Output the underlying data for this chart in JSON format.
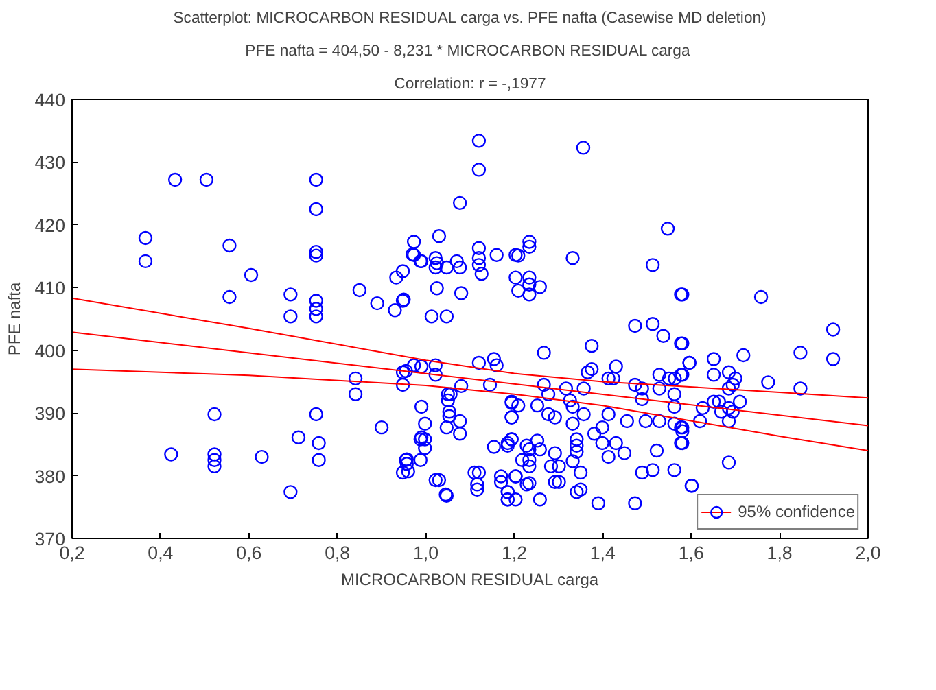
{
  "chart_data": {
    "type": "scatter",
    "title": "Scatterplot: MICROCARBON RESIDUAL carga vs. PFE nafta (Casewise MD deletion)",
    "subtitle": "PFE nafta = 404,50 - 8,231  * MICROCARBON RESIDUAL carga",
    "annotations": [
      "Correlation: r = -,1977"
    ],
    "xlabel": "MICROCARBON RESIDUAL carga",
    "ylabel": "PFE nafta",
    "xlim": [
      0.2,
      2.0
    ],
    "ylim": [
      370,
      440
    ],
    "xticks": [
      {
        "value": 0.2,
        "label": "0,2"
      },
      {
        "value": 0.4,
        "label": "0,4"
      },
      {
        "value": 0.6,
        "label": "0,6"
      },
      {
        "value": 0.8,
        "label": "0,8"
      },
      {
        "value": 1.0,
        "label": "1,0"
      },
      {
        "value": 1.2,
        "label": "1,2"
      },
      {
        "value": 1.4,
        "label": "1,4"
      },
      {
        "value": 1.6,
        "label": "1,6"
      },
      {
        "value": 1.8,
        "label": "1,8"
      },
      {
        "value": 2.0,
        "label": "2,0"
      }
    ],
    "yticks": [
      370,
      380,
      390,
      400,
      410,
      420,
      430,
      440
    ],
    "grid": false,
    "legend": "bottom right",
    "line_style": "solid",
    "series": [
      {
        "marker": "circle",
        "color": "#0000ff",
        "x": [
          0.433,
          0.504,
          0.752,
          0.752,
          0.366,
          0.366,
          0.556,
          0.605,
          0.752,
          0.752,
          0.556,
          0.694,
          0.694,
          0.752,
          0.752,
          0.752,
          0.522,
          0.752,
          0.712,
          0.758,
          0.424,
          0.522,
          0.522,
          0.522,
          0.629,
          0.758,
          0.694,
          0.85,
          0.89,
          0.93,
          0.948,
          0.97,
          0.99,
          0.95,
          0.955,
          0.99,
          0.99,
          0.99,
          0.955,
          0.96,
          1.025,
          1.025,
          1.05,
          1.05,
          1.03,
          1.045,
          1.07,
          1.08,
          1.08,
          1.12,
          1.12,
          1.077,
          1.03,
          0.973,
          0.973,
          0.988,
          1.022,
          1.022,
          1.047,
          1.077,
          1.12,
          1.12,
          1.12,
          1.126,
          1.16,
          1.203,
          0.933,
          0.948,
          1.013,
          1.047,
          0.841,
          0.841,
          0.948,
          0.948,
          0.973,
          1.022,
          1.022,
          1.12,
          1.154,
          1.16,
          1.145,
          1.056,
          0.9,
          0.998,
          1.053,
          1.053,
          1.047,
          1.077,
          1.077,
          0.988,
          0.998,
          0.998,
          0.988,
          0.957,
          0.957,
          0.948,
          1.022,
          1.047,
          1.154,
          1.185,
          1.194,
          1.11,
          1.12,
          1.116,
          1.116,
          1.17,
          1.17,
          1.185,
          1.185,
          1.194,
          1.194,
          1.203,
          1.356,
          1.234,
          1.209,
          1.234,
          1.332,
          1.547,
          1.513,
          1.203,
          1.234,
          1.234,
          1.258,
          1.209,
          1.234,
          1.577,
          1.473,
          1.513,
          1.537,
          1.577,
          1.375,
          1.267,
          1.596,
          1.366,
          1.375,
          1.43,
          1.413,
          1.424,
          1.528,
          1.55,
          1.563,
          1.577,
          1.267,
          1.277,
          1.317,
          1.357,
          1.326,
          1.473,
          1.489,
          1.489,
          1.528,
          1.562,
          1.562,
          1.194,
          1.209,
          1.252,
          1.332,
          1.277,
          1.292,
          1.357,
          1.413,
          1.194,
          1.332,
          1.455,
          1.497,
          1.528,
          1.562,
          1.577,
          1.399,
          1.381,
          1.185,
          1.194,
          1.228,
          1.234,
          1.252,
          1.258,
          1.292,
          1.341,
          1.341,
          1.341,
          1.399,
          1.43,
          1.413,
          1.449,
          1.522,
          1.577,
          1.218,
          1.234,
          1.234,
          1.283,
          1.301,
          1.332,
          1.35,
          1.203,
          1.228,
          1.234,
          1.292,
          1.301,
          1.341,
          1.35,
          1.258,
          1.185,
          1.185,
          1.203,
          1.39,
          1.473,
          1.489,
          1.513,
          1.562,
          1.601,
          1.58,
          1.758,
          1.921,
          1.58,
          1.718,
          1.847,
          1.921,
          1.651,
          1.596,
          1.58,
          1.651,
          1.685,
          1.7,
          1.685,
          1.694,
          1.774,
          1.847,
          1.651,
          1.663,
          1.71,
          1.626,
          1.685,
          1.668,
          1.694,
          1.62,
          1.685,
          1.58,
          1.58,
          1.58,
          1.685,
          1.601
        ],
        "values": [
          427.2,
          427.2,
          427.2,
          422.5,
          417.9,
          414.2,
          416.7,
          412.0,
          415.7,
          415.1,
          408.5,
          408.9,
          405.4,
          407.9,
          406.6,
          405.4,
          389.8,
          389.8,
          386.1,
          385.2,
          383.4,
          383.4,
          382.5,
          381.5,
          383.0,
          382.5,
          377.4,
          409.6,
          407.5,
          406.4,
          412.6,
          415.3,
          414.2,
          408.1,
          396.7,
          397.4,
          391.0,
          386.1,
          382.5,
          380.7,
          413.9,
          409.9,
          393.0,
          392.0,
          379.3,
          377.0,
          414.2,
          409.1,
          394.3,
          433.4,
          428.8,
          423.5,
          418.2,
          417.3,
          415.2,
          414.2,
          414.7,
          413.2,
          413.2,
          413.2,
          416.3,
          414.7,
          413.6,
          412.2,
          415.2,
          415.2,
          411.6,
          407.9,
          405.4,
          405.4,
          395.5,
          393.0,
          396.5,
          394.5,
          397.6,
          397.6,
          396.1,
          398.0,
          398.6,
          397.6,
          394.5,
          393.0,
          387.7,
          388.3,
          390.2,
          389.5,
          387.7,
          388.7,
          386.7,
          385.8,
          385.8,
          384.4,
          382.5,
          382.6,
          381.9,
          380.5,
          379.3,
          376.8,
          384.6,
          384.8,
          385.8,
          380.5,
          380.5,
          378.6,
          377.8,
          379.9,
          379.0,
          377.4,
          376.2,
          391.6,
          389.3,
          379.9,
          432.3,
          417.3,
          415.1,
          416.5,
          414.7,
          419.4,
          413.6,
          411.6,
          411.6,
          410.5,
          410.1,
          409.5,
          408.9,
          408.9,
          403.9,
          404.2,
          402.3,
          401.1,
          400.7,
          399.6,
          398.0,
          396.5,
          397.0,
          397.4,
          395.5,
          395.5,
          396.1,
          395.5,
          395.5,
          396.1,
          394.5,
          393.0,
          393.9,
          393.9,
          392.0,
          394.5,
          393.9,
          392.2,
          393.9,
          393.0,
          391.0,
          391.8,
          391.2,
          391.2,
          391.0,
          389.8,
          389.3,
          389.8,
          389.8,
          389.3,
          388.3,
          388.7,
          388.7,
          388.7,
          388.3,
          387.7,
          387.7,
          386.7,
          385.2,
          385.8,
          384.8,
          384.2,
          385.6,
          384.2,
          383.6,
          385.8,
          384.8,
          383.8,
          385.2,
          385.2,
          383.0,
          383.6,
          384.0,
          385.2,
          382.5,
          382.5,
          381.5,
          381.5,
          381.5,
          382.3,
          380.5,
          379.9,
          378.6,
          378.8,
          379.0,
          379.0,
          377.4,
          377.8,
          376.2,
          377.4,
          376.2,
          376.2,
          375.6,
          375.6,
          380.5,
          380.9,
          380.9,
          378.4,
          408.9,
          408.5,
          403.3,
          401.1,
          399.2,
          399.6,
          398.6,
          398.6,
          398.0,
          396.1,
          396.1,
          396.5,
          395.5,
          393.9,
          394.5,
          394.9,
          393.9,
          391.8,
          391.8,
          391.8,
          390.8,
          390.8,
          390.2,
          390.2,
          388.7,
          388.7,
          387.7,
          387.1,
          385.2,
          382.1,
          378.4
        ]
      },
      {
        "type": "line",
        "color": "#ff0000",
        "x": [
          0.2,
          2.0
        ],
        "values": [
          402.9,
          388.0
        ]
      },
      {
        "type": "line",
        "name": "95% confidence",
        "color": "#ff0000",
        "x": [
          0.2,
          0.6,
          1.0,
          1.2,
          1.4,
          1.8,
          2.0
        ],
        "values": [
          408.3,
          403.5,
          398.4,
          396.3,
          395.0,
          393.3,
          392.4
        ]
      },
      {
        "type": "line",
        "color": "#ff0000",
        "x": [
          0.2,
          0.6,
          1.0,
          1.2,
          1.4,
          1.8,
          2.0
        ],
        "values": [
          397.0,
          396.0,
          394.4,
          393.0,
          391.2,
          386.3,
          384.0
        ]
      }
    ]
  }
}
